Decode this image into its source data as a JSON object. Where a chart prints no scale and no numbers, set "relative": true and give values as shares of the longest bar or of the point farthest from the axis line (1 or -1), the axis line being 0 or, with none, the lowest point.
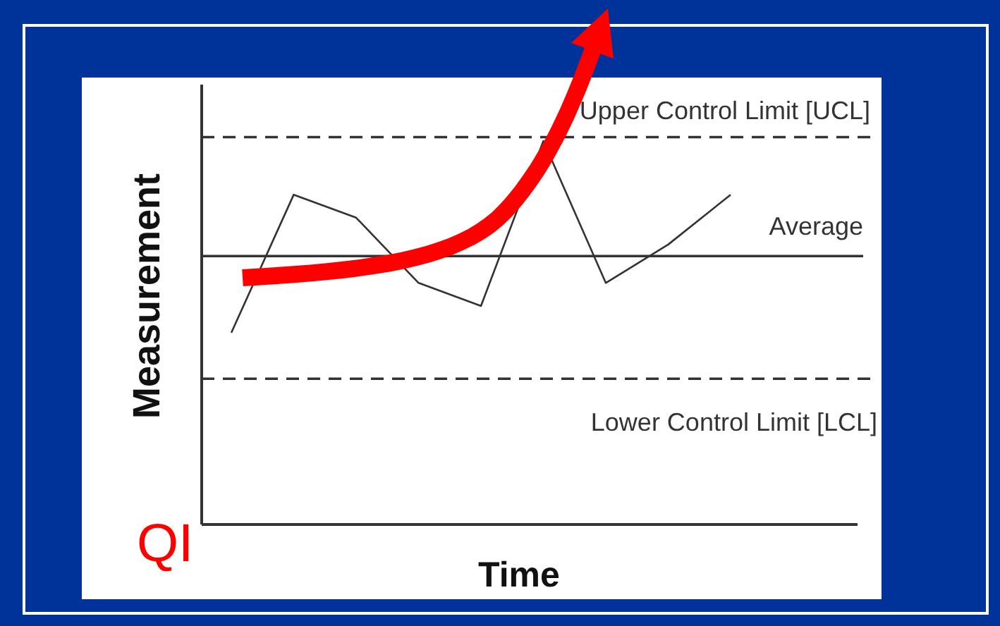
{
  "chart_data": {
    "type": "line",
    "relative": true,
    "xlabel": "Time",
    "ylabel": "Measurement",
    "categories": [
      null,
      null,
      null,
      null,
      null,
      null,
      null,
      null,
      null
    ],
    "series": [
      {
        "color": "#333333",
        "values": [
          0.5,
          0.86,
          0.8,
          0.63,
          0.57,
          1,
          0.63,
          0.73,
          0.86
        ]
      }
    ],
    "ref_lines": [
      {
        "axis": "y",
        "value": 1.01,
        "label": "Upper Control Limit [UCL]",
        "line_style": "dashed",
        "color": "#333333"
      },
      {
        "axis": "y",
        "value": 0.7,
        "label": "Average",
        "line_style": "solid",
        "color": "#333333"
      },
      {
        "axis": "y",
        "value": 0.38,
        "label": "Lower Control Limit [LCL]",
        "line_style": "dashed",
        "color": "#333333"
      }
    ],
    "annotations": [
      "QI"
    ],
    "marker": "none",
    "line_style": "solid"
  }
}
